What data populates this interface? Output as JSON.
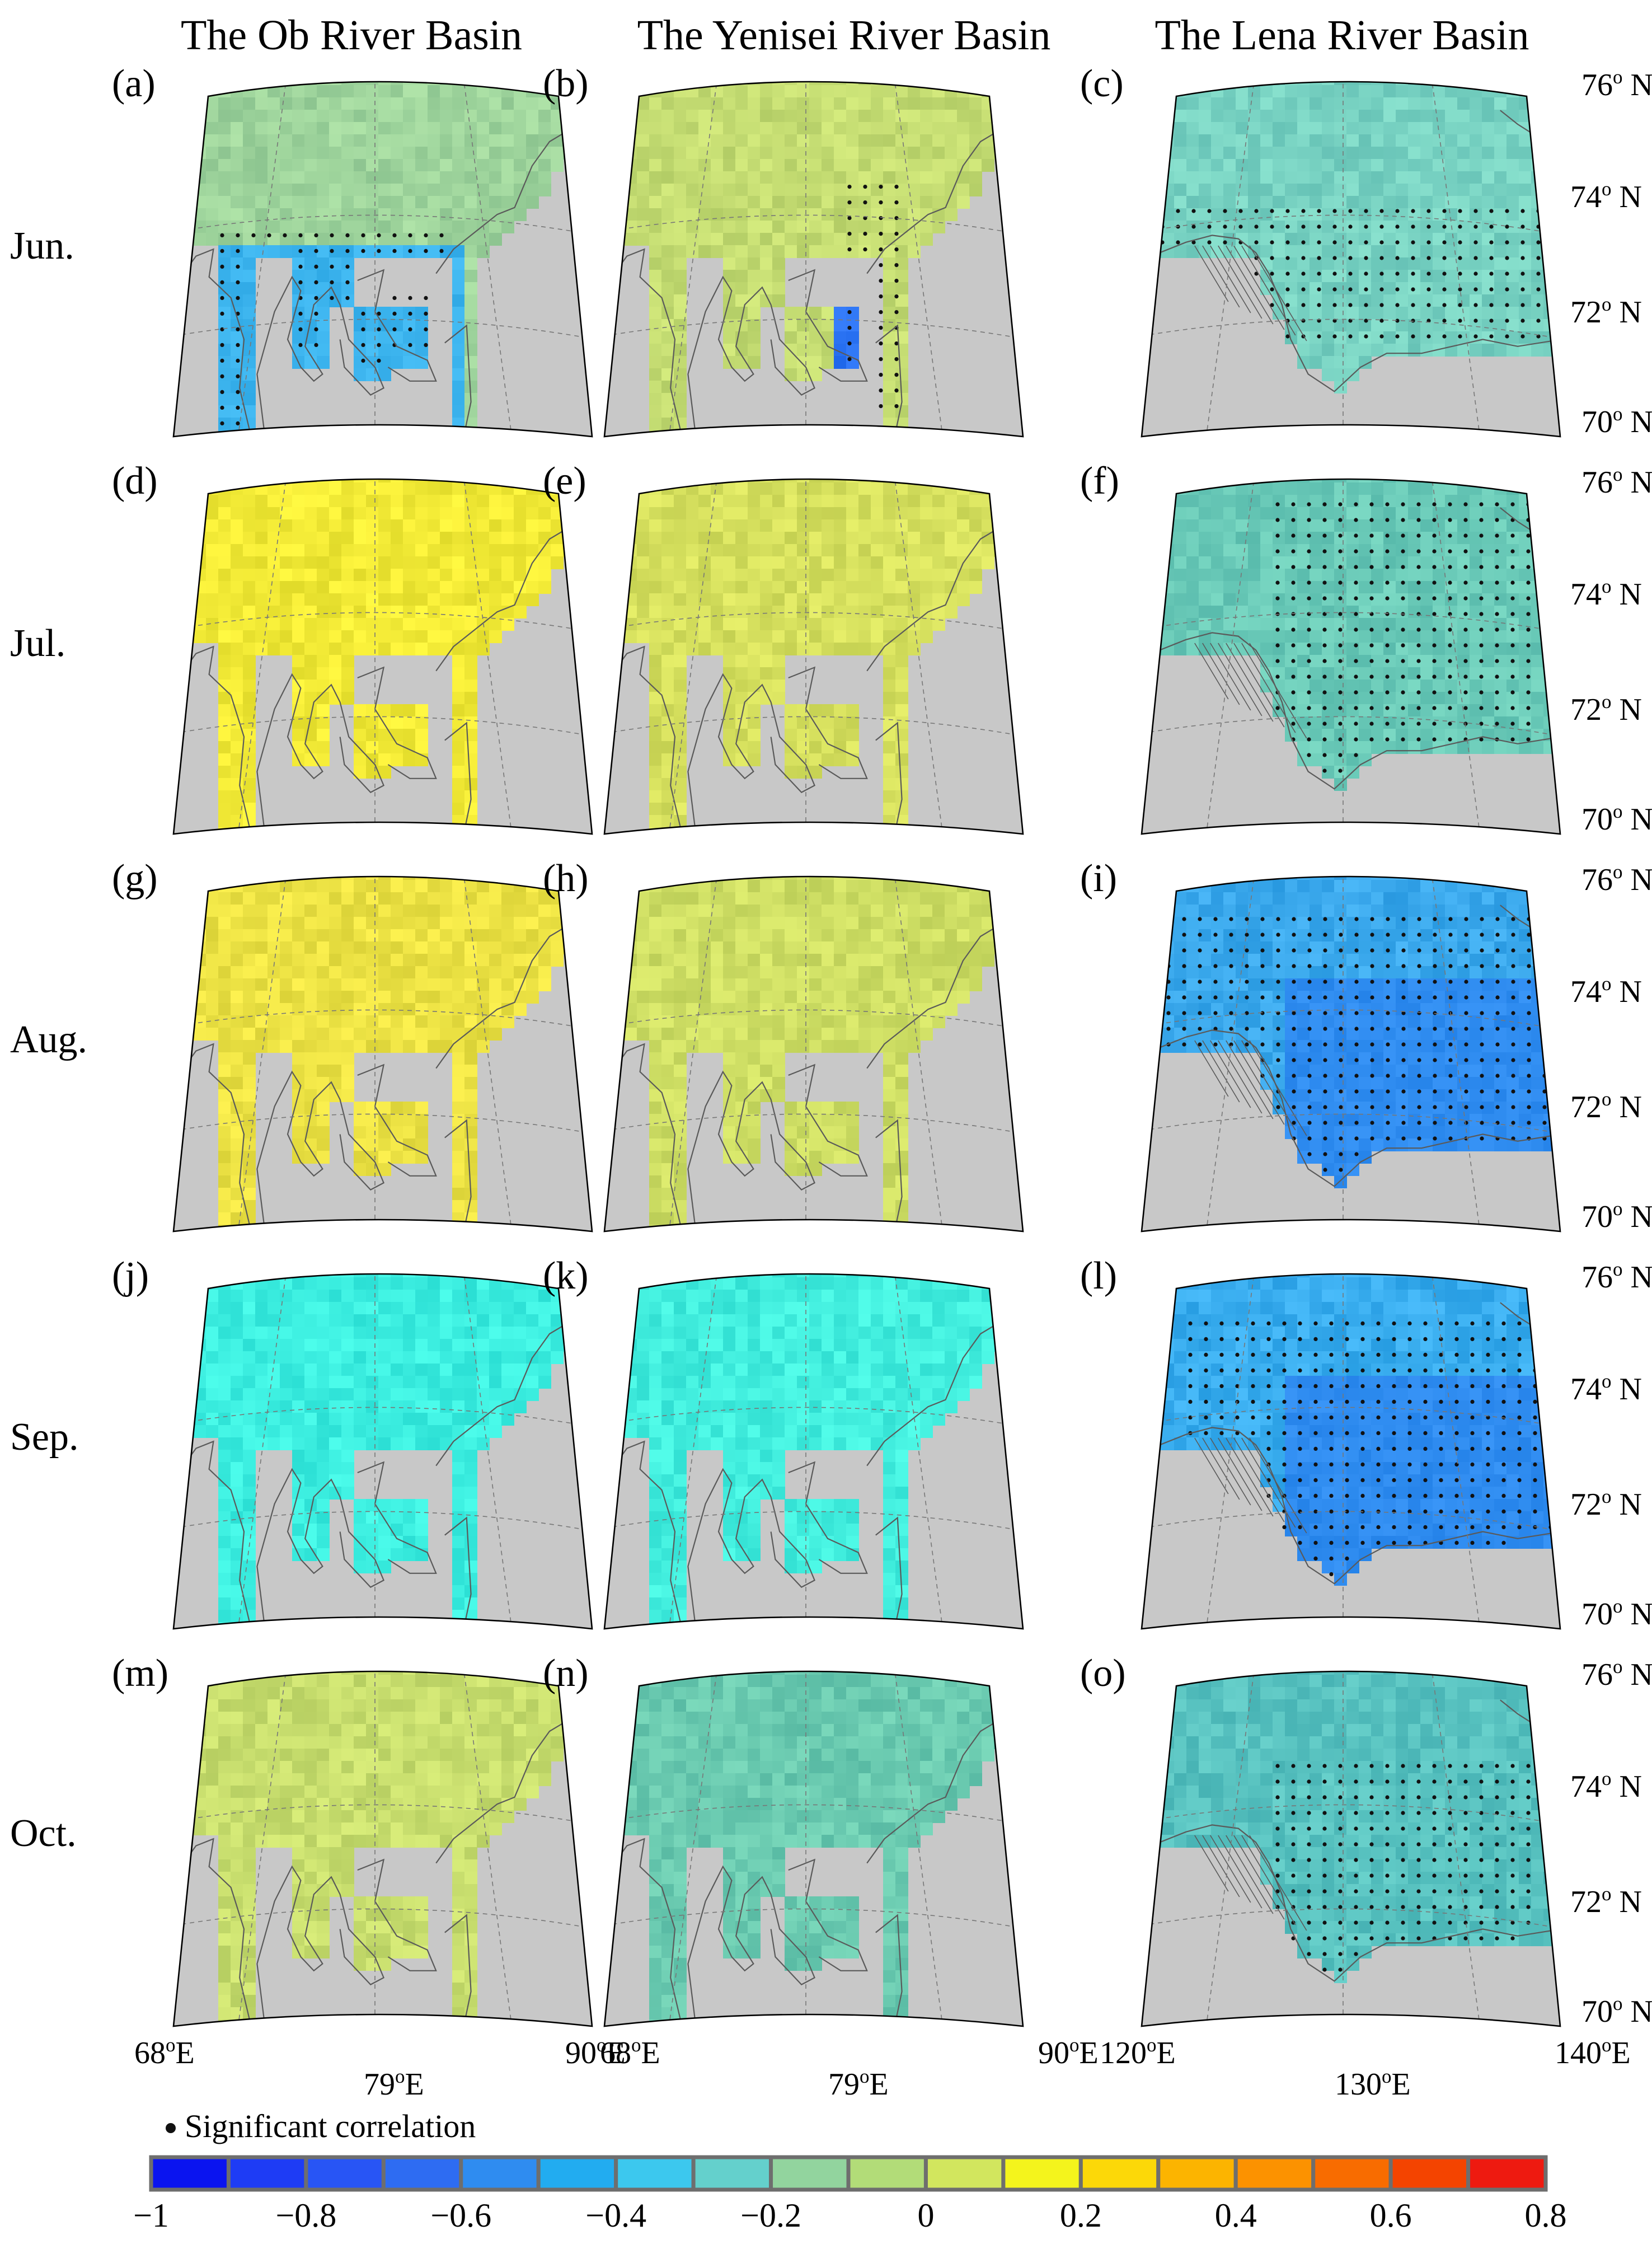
{
  "columns": [
    {
      "id": "ob",
      "title": "The Ob River Basin"
    },
    {
      "id": "yenisei",
      "title": "The Yenisei River Basin"
    },
    {
      "id": "lena",
      "title": "The Lena River Basin"
    }
  ],
  "rows": [
    {
      "month": "Jun.",
      "panels": [
        "(a)",
        "(b)",
        "(c)"
      ]
    },
    {
      "month": "Jul.",
      "panels": [
        "(d)",
        "(e)",
        "(f)"
      ]
    },
    {
      "month": "Aug.",
      "panels": [
        "(g)",
        "(h)",
        "(i)"
      ]
    },
    {
      "month": "Sep.",
      "panels": [
        "(j)",
        "(k)",
        "(l)"
      ]
    },
    {
      "month": "Oct.",
      "panels": [
        "(m)",
        "(n)",
        "(o)"
      ]
    }
  ],
  "lat_labels": [
    {
      "deg": "76",
      "unit": "o",
      "hemi": " N"
    },
    {
      "deg": "74",
      "unit": "o",
      "hemi": " N"
    },
    {
      "deg": "72",
      "unit": "o",
      "hemi": " N"
    },
    {
      "deg": "70",
      "unit": "o",
      "hemi": " N"
    }
  ],
  "lon_labels": {
    "ob": [
      {
        "deg": "68",
        "unit": "o",
        "hemi": "E"
      },
      {
        "deg": "79",
        "unit": "o",
        "hemi": "E"
      },
      {
        "deg": "90",
        "unit": "o",
        "hemi": "E"
      }
    ],
    "yenisei": [
      {
        "deg": "68",
        "unit": "o",
        "hemi": "E"
      },
      {
        "deg": "79",
        "unit": "o",
        "hemi": "E"
      },
      {
        "deg": "90",
        "unit": "o",
        "hemi": "E"
      }
    ],
    "lena": [
      {
        "deg": "120",
        "unit": "o",
        "hemi": "E"
      },
      {
        "deg": "130",
        "unit": "o",
        "hemi": "E"
      },
      {
        "deg": "140",
        "unit": "o",
        "hemi": "E"
      }
    ]
  },
  "legend": {
    "marker_label": "Significant correlation"
  },
  "colorbar": {
    "ticks": [
      "−1",
      "−0.8",
      "−0.6",
      "−0.4",
      "−0.2",
      "0",
      "0.2",
      "0.4",
      "0.6",
      "0.8"
    ],
    "colors": [
      "#0a14f0",
      "#1e3cf5",
      "#2855f5",
      "#2e6cf2",
      "#2f8cf0",
      "#22acf0",
      "#3cc8ee",
      "#64d0cc",
      "#92d49e",
      "#b2dc78",
      "#d2e65e",
      "#f4f41c",
      "#fcd808",
      "#fcb400",
      "#fc9200",
      "#f86c00",
      "#f44400",
      "#ee1a10"
    ],
    "land": "#c8c8c8",
    "coast": "#5a5a5a",
    "ocean_nodata": "#ffffff"
  },
  "panel_colors": {
    "ob": [
      "#9ed49c",
      "#f2ea36",
      "#ece244",
      "#3ceee0",
      "#c8de6e"
    ],
    "yenisei": [
      "#c4dc72",
      "#d6e05e",
      "#cede64",
      "#42eede",
      "#6acab0"
    ],
    "lena": [
      "#78d2c2",
      "#6acab8",
      "#3aa8ec",
      "#38acee",
      "#58c2c0"
    ]
  }
}
